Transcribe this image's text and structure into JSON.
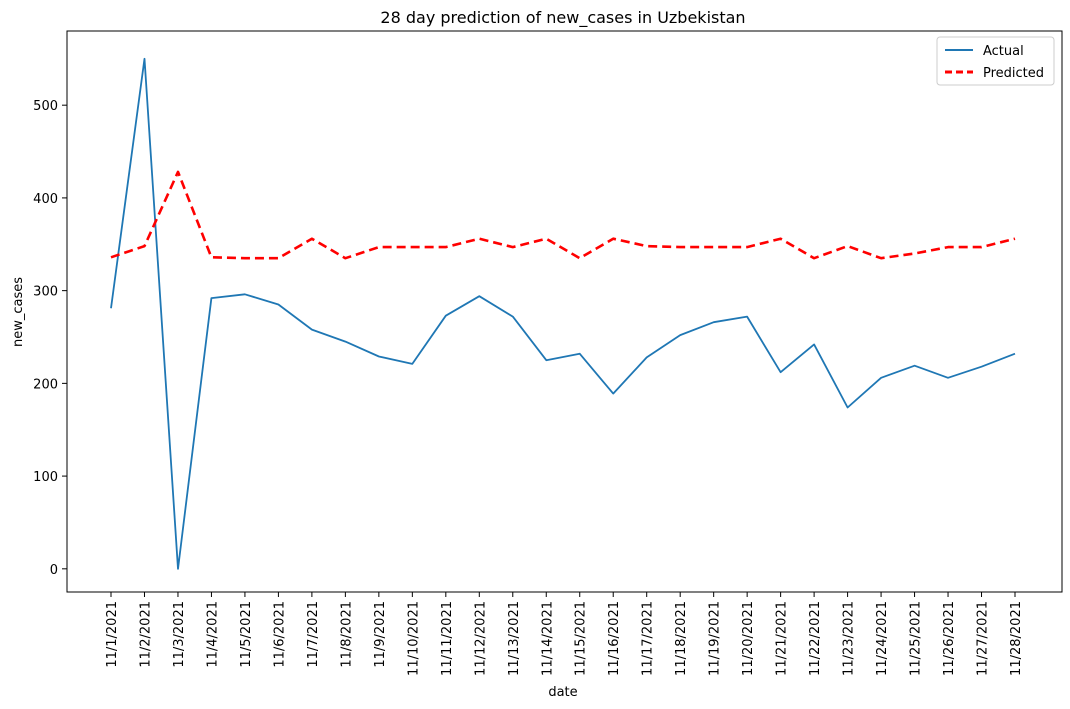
{
  "chart_data": {
    "type": "line",
    "title": "28 day prediction of new_cases in Uzbekistan",
    "xlabel": "date",
    "ylabel": "new_cases",
    "ylim": [
      -25,
      580
    ],
    "yticks": [
      0,
      100,
      200,
      300,
      400,
      500
    ],
    "grid": false,
    "legend_position": "top-right",
    "x": [
      "11/1/2021",
      "11/2/2021",
      "11/3/2021",
      "11/4/2021",
      "11/5/2021",
      "11/6/2021",
      "11/7/2021",
      "11/8/2021",
      "11/9/2021",
      "11/10/2021",
      "11/11/2021",
      "11/12/2021",
      "11/13/2021",
      "11/14/2021",
      "11/15/2021",
      "11/16/2021",
      "11/17/2021",
      "11/18/2021",
      "11/19/2021",
      "11/20/2021",
      "11/21/2021",
      "11/22/2021",
      "11/23/2021",
      "11/24/2021",
      "11/25/2021",
      "11/26/2021",
      "11/27/2021",
      "11/28/2021"
    ],
    "series": [
      {
        "name": "Actual",
        "color": "#1f77b4",
        "style": "solid",
        "values": [
          281,
          550,
          0,
          292,
          296,
          285,
          258,
          245,
          229,
          221,
          273,
          294,
          272,
          225,
          232,
          189,
          228,
          252,
          266,
          272,
          212,
          242,
          174,
          206,
          219,
          206,
          218,
          232
        ]
      },
      {
        "name": "Predicted",
        "color": "#ff0000",
        "style": "dashed",
        "values": [
          336,
          348,
          428,
          336,
          335,
          335,
          356,
          335,
          347,
          347,
          347,
          356,
          347,
          356,
          335,
          356,
          348,
          347,
          347,
          347,
          356,
          335,
          348,
          335,
          340,
          347,
          347,
          356
        ]
      }
    ]
  }
}
